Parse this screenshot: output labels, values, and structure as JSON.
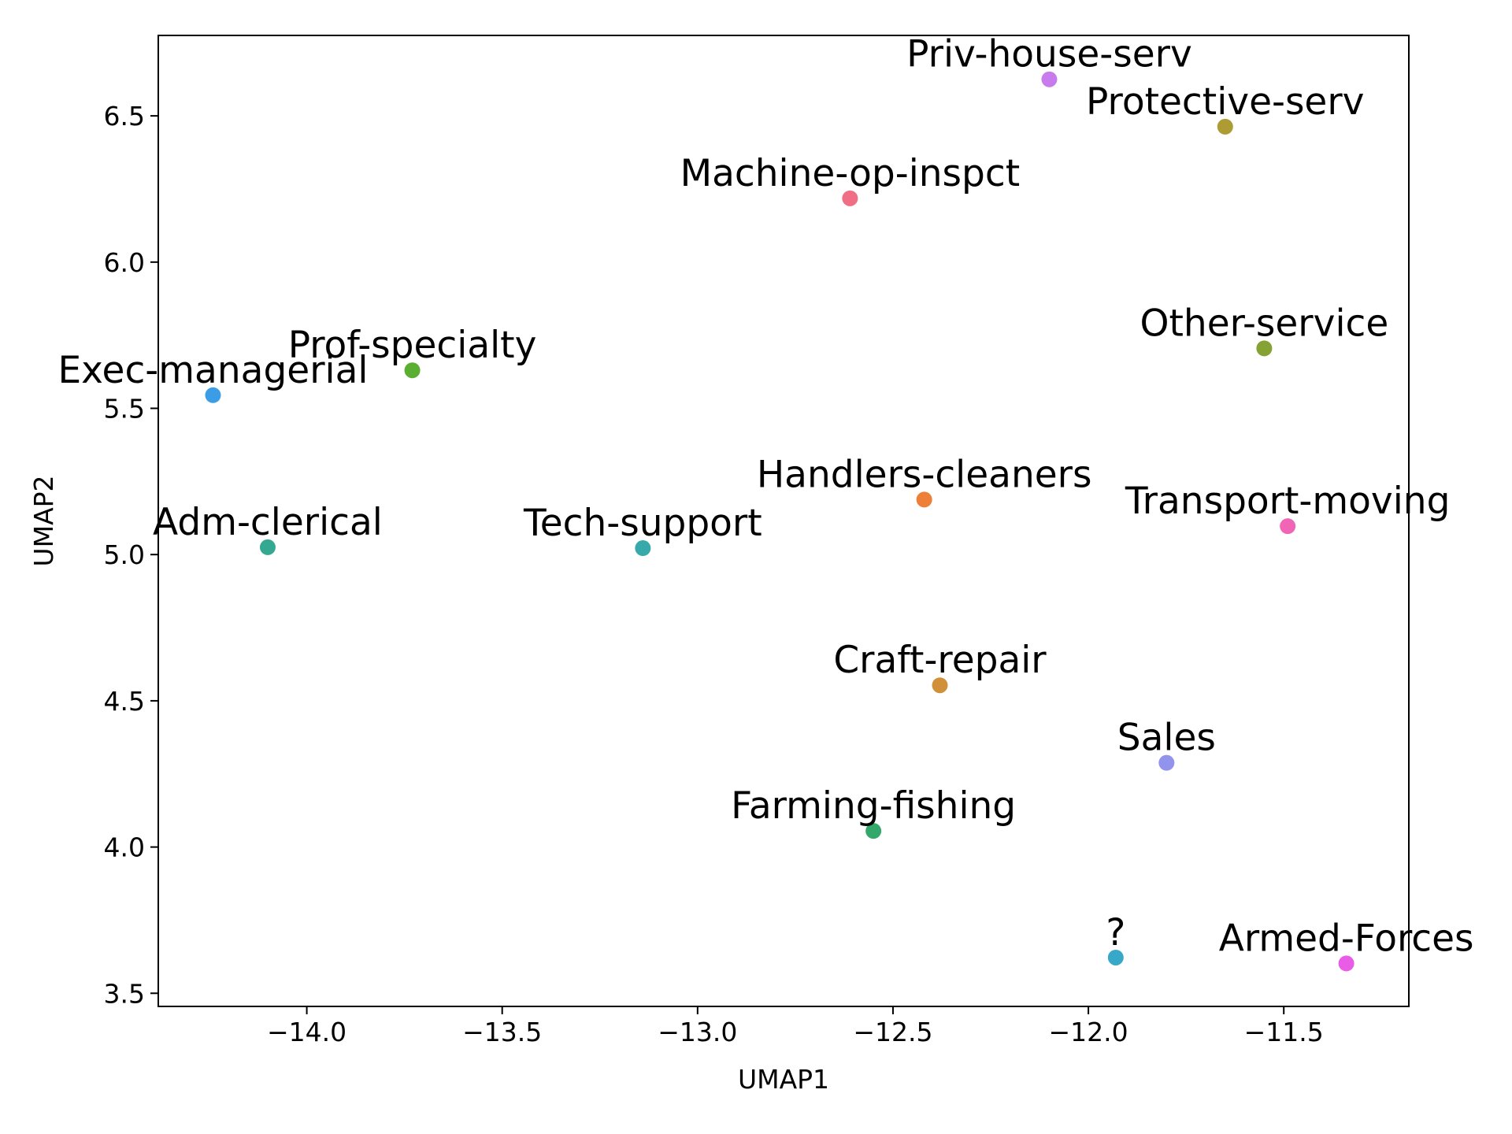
{
  "chart_data": {
    "type": "scatter",
    "xlabel": "UMAP1",
    "ylabel": "UMAP2",
    "xlim": [
      -14.38,
      -11.18
    ],
    "ylim": [
      3.455,
      6.775
    ],
    "x_ticks": [
      -14.0,
      -13.5,
      -13.0,
      -12.5,
      -12.0,
      -11.5
    ],
    "x_tick_labels": [
      "−14.0",
      "−13.5",
      "−13.0",
      "−12.5",
      "−12.0",
      "−11.5"
    ],
    "y_ticks": [
      3.5,
      4.0,
      4.5,
      5.0,
      5.5,
      6.0,
      6.5
    ],
    "y_tick_labels": [
      "3.5",
      "4.0",
      "4.5",
      "5.0",
      "5.5",
      "6.0",
      "6.5"
    ],
    "grid": false,
    "points": [
      {
        "label": "Exec-managerial",
        "x": -14.24,
        "y": 5.545,
        "color": "#3b9de6"
      },
      {
        "label": "Prof-specialty",
        "x": -13.73,
        "y": 5.63,
        "color": "#5aaf32"
      },
      {
        "label": "Adm-clerical",
        "x": -14.1,
        "y": 5.025,
        "color": "#35a892"
      },
      {
        "label": "Tech-support",
        "x": -13.14,
        "y": 5.022,
        "color": "#37a9aa"
      },
      {
        "label": "Machine-op-inspct",
        "x": -12.61,
        "y": 6.218,
        "color": "#f06f84"
      },
      {
        "label": "Priv-house-serv",
        "x": -12.1,
        "y": 6.625,
        "color": "#c77bec"
      },
      {
        "label": "Protective-serv",
        "x": -11.65,
        "y": 6.463,
        "color": "#ad9c33"
      },
      {
        "label": "Other-service",
        "x": -11.55,
        "y": 5.705,
        "color": "#86a234"
      },
      {
        "label": "Handlers-cleaners",
        "x": -12.42,
        "y": 5.188,
        "color": "#ee7f38"
      },
      {
        "label": "Transport-moving",
        "x": -11.49,
        "y": 5.097,
        "color": "#f065b5"
      },
      {
        "label": "Craft-repair",
        "x": -12.38,
        "y": 4.553,
        "color": "#d09138"
      },
      {
        "label": "Sales",
        "x": -11.8,
        "y": 4.288,
        "color": "#9193ec"
      },
      {
        "label": "Farming-fishing",
        "x": -12.55,
        "y": 4.055,
        "color": "#34a86b"
      },
      {
        "label": "?",
        "x": -11.93,
        "y": 3.622,
        "color": "#38a8c8"
      },
      {
        "label": "Armed-Forces",
        "x": -11.34,
        "y": 3.602,
        "color": "#e95ce6"
      }
    ]
  }
}
